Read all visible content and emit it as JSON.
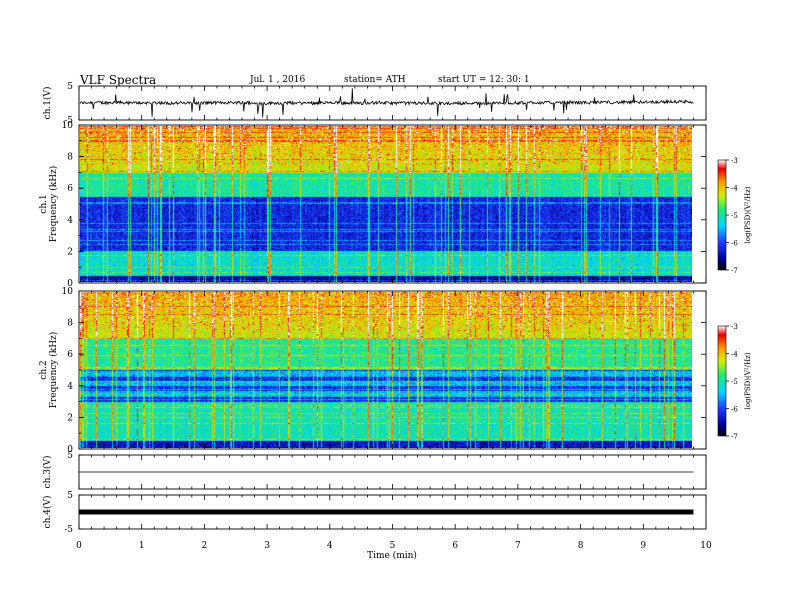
{
  "header": {
    "title": "VLF  Spectra",
    "date": "Jul.  1  , 2016",
    "station": "station= ATH",
    "start": "start  UT  =   12: 30: 1"
  },
  "chart_data": [
    {
      "type": "line",
      "panel": "ch1-waveform",
      "ylabel": "ch.1(V)",
      "ylim": [
        -5,
        5
      ],
      "yticks": [
        "5",
        "-5"
      ],
      "x_range_min": [
        0,
        9.8
      ],
      "series_color": "#000000"
    },
    {
      "type": "heatmap",
      "panel": "ch1-spectrogram",
      "ylabel_channel": "ch.1",
      "ylabel": "Frequency  (kHz)",
      "ylim": [
        0,
        10
      ],
      "yticks": [
        "0",
        "2",
        "4",
        "6",
        "8",
        "10"
      ],
      "x_range_min": [
        0,
        9.8
      ],
      "colorbar": {
        "label": "log(PSD)(V²/Hz)",
        "range": [
          -7,
          -3
        ],
        "ticks": [
          "-3",
          "-4",
          "-5",
          "-6",
          "-7"
        ]
      }
    },
    {
      "type": "heatmap",
      "panel": "ch2-spectrogram",
      "ylabel_channel": "ch.2",
      "ylabel": "Frequency  (kHz)",
      "ylim": [
        0,
        10
      ],
      "yticks": [
        "0",
        "2",
        "4",
        "6",
        "8",
        "10"
      ],
      "x_range_min": [
        0,
        9.8
      ],
      "colorbar": {
        "label": "log(PSD)(V²/Hz)",
        "range": [
          -7,
          -3
        ],
        "ticks": [
          "-3",
          "-4",
          "-5",
          "-6",
          "-7"
        ]
      }
    },
    {
      "type": "line",
      "panel": "ch3-waveform",
      "ylabel": "ch.3(V)",
      "ylim": [
        -5,
        5
      ],
      "yticks": [
        "5"
      ],
      "x_range_min": [
        0,
        9.8
      ]
    },
    {
      "type": "line",
      "panel": "ch4-waveform",
      "ylabel": "ch.4(V)",
      "ylim": [
        -5,
        5
      ],
      "yticks": [
        "5",
        "-5"
      ],
      "x_range_min": [
        0,
        9.8
      ]
    }
  ],
  "xaxis": {
    "label": "Time  (min)",
    "ticks": [
      "0",
      "1",
      "2",
      "3",
      "4",
      "5",
      "6",
      "7",
      "8",
      "9",
      "10"
    ],
    "range": [
      0,
      10
    ]
  }
}
